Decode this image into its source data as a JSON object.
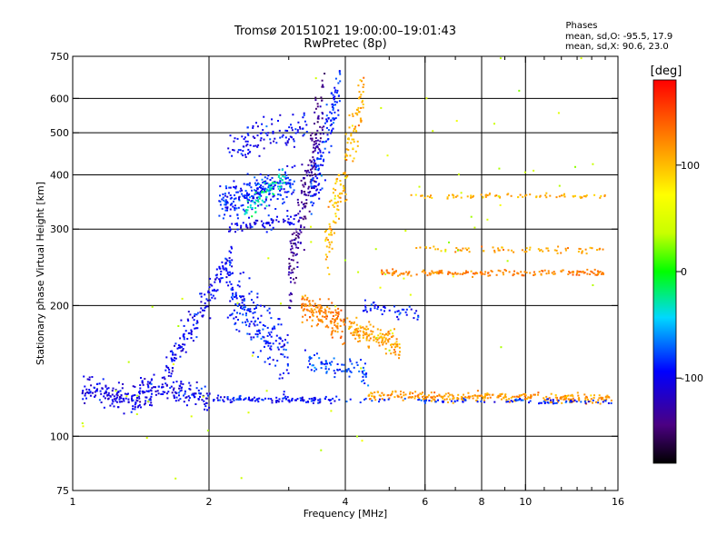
{
  "chart_data": {
    "type": "scatter",
    "title": "Tromsø 20151021 19:00:00–19:01:43",
    "subtitle": "RwPretec (8p)",
    "xlabel": "Frequency [MHz]",
    "ylabel": "Stationary phase Virtual Height [km]",
    "xscale": "log",
    "yscale": "log",
    "xlim": [
      1,
      16
    ],
    "ylim": [
      75,
      750
    ],
    "xticks": [
      1,
      2,
      4,
      6,
      8,
      10,
      16
    ],
    "x_minor_ticks": [
      3,
      5,
      7,
      9,
      11,
      12,
      13,
      14,
      15
    ],
    "yticks": [
      75,
      100,
      200,
      300,
      400,
      500,
      600,
      750
    ],
    "x_gridlines": [
      2,
      4,
      6,
      8,
      10
    ],
    "y_gridlines": [
      100,
      200,
      300,
      400,
      500,
      600
    ],
    "grid": true,
    "stats": {
      "title": "Phases",
      "line_o": "mean, sd,O:  -95.5, 17.9",
      "line_x": "mean, sd,X:  90.6, 23.0"
    },
    "colorbar": {
      "label": "[deg]",
      "ticks": [
        {
          "value": 100,
          "label": "100"
        },
        {
          "value": 0,
          "label": "0"
        },
        {
          "value": -100,
          "label": "-100"
        }
      ],
      "range": [
        -180,
        180
      ]
    },
    "series": [
      {
        "freq": [
          1.05,
          1.5
        ],
        "height": [
          128,
          120
        ],
        "phase": -105,
        "spread": 0.09,
        "n": 160
      },
      {
        "freq": [
          1.4,
          2.05
        ],
        "height": [
          132,
          122
        ],
        "phase": -100,
        "spread": 0.07,
        "n": 130
      },
      {
        "freq": [
          2.05,
          3.9
        ],
        "height": [
          122,
          121
        ],
        "phase": -95,
        "spread": 0.02,
        "n": 120
      },
      {
        "freq": [
          1.6,
          2.25
        ],
        "height": [
          140,
          260
        ],
        "phase": -100,
        "spread": 0.12,
        "n": 160
      },
      {
        "freq": [
          2.2,
          3.0
        ],
        "height": [
          220,
          150
        ],
        "phase": -92,
        "spread": 0.2,
        "n": 200
      },
      {
        "freq": [
          2.1,
          3.1
        ],
        "height": [
          340,
          390
        ],
        "phase": -90,
        "spread": 0.12,
        "n": 240
      },
      {
        "freq": [
          2.4,
          2.95
        ],
        "height": [
          330,
          400
        ],
        "phase": -30,
        "spread": 0.08,
        "n": 70
      },
      {
        "freq": [
          2.2,
          3.3
        ],
        "height": [
          460,
          520
        ],
        "phase": -98,
        "spread": 0.12,
        "n": 110
      },
      {
        "freq": [
          2.2,
          3.2
        ],
        "height": [
          300,
          320
        ],
        "phase": -102,
        "spread": 0.05,
        "n": 70
      },
      {
        "freq": [
          3.0,
          3.6
        ],
        "height": [
          230,
          600
        ],
        "phase": -135,
        "spread": 0.25,
        "n": 200
      },
      {
        "freq": [
          3.35,
          3.9
        ],
        "height": [
          350,
          640
        ],
        "phase": -88,
        "spread": 0.18,
        "n": 130
      },
      {
        "freq": [
          3.6,
          4.4
        ],
        "height": [
          260,
          620
        ],
        "phase": 105,
        "spread": 0.2,
        "n": 150
      },
      {
        "freq": [
          3.2,
          4.0
        ],
        "height": [
          200,
          180
        ],
        "phase": 125,
        "spread": 0.1,
        "n": 150
      },
      {
        "freq": [
          4.0,
          5.3
        ],
        "height": [
          180,
          160
        ],
        "phase": 112,
        "spread": 0.08,
        "n": 140
      },
      {
        "freq": [
          3.2,
          4.5
        ],
        "height": [
          150,
          140
        ],
        "phase": -80,
        "spread": 0.07,
        "n": 80
      },
      {
        "freq": [
          4.3,
          5.8
        ],
        "height": [
          200,
          190
        ],
        "phase": -90,
        "spread": 0.04,
        "n": 45
      },
      {
        "freq": [
          4.5,
          15.5
        ],
        "height": [
          124,
          122
        ],
        "phase": 115,
        "spread": 0.03,
        "n": 280
      },
      {
        "freq": [
          4.0,
          15.5
        ],
        "height": [
          121,
          120
        ],
        "phase": -88,
        "spread": 0.015,
        "n": 90
      },
      {
        "freq": [
          4.8,
          15.0
        ],
        "height": [
          238,
          238
        ],
        "phase": 125,
        "spread": 0.02,
        "n": 180
      },
      {
        "freq": [
          5.5,
          15.0
        ],
        "height": [
          270,
          268
        ],
        "phase": 110,
        "spread": 0.02,
        "n": 70
      },
      {
        "freq": [
          5.5,
          15.0
        ],
        "height": [
          357,
          357
        ],
        "phase": 105,
        "spread": 0.015,
        "n": 80
      },
      {
        "freq": [
          1.0,
          15.5
        ],
        "height": [
          80,
          700
        ],
        "phase": 40,
        "spread": 1.2,
        "n": 90
      }
    ]
  }
}
